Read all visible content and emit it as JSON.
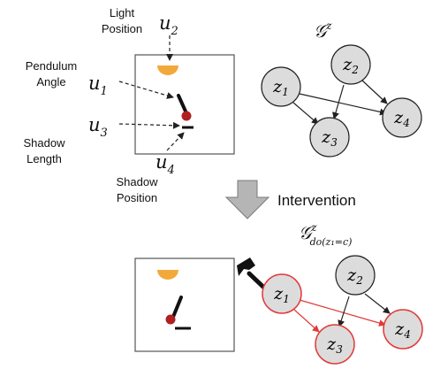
{
  "annotations": {
    "light_position": [
      "Light",
      "Position"
    ],
    "pendulum_angle": [
      "Pendulum",
      "Angle"
    ],
    "shadow_length": [
      "Shadow",
      "Length"
    ],
    "shadow_position": [
      "Shadow",
      "Position"
    ],
    "u1": "u",
    "u1_sub": "1",
    "u2": "u",
    "u2_sub": "2",
    "u3": "u",
    "u3_sub": "3",
    "u4": "u",
    "u4_sub": "4"
  },
  "graph_top": {
    "title": "𝒢",
    "title_sup": "z",
    "nodes": [
      {
        "label": "z",
        "sub": "1"
      },
      {
        "label": "z",
        "sub": "2"
      },
      {
        "label": "z",
        "sub": "3"
      },
      {
        "label": "z",
        "sub": "4"
      }
    ]
  },
  "intervention": {
    "label": "Intervention"
  },
  "graph_bottom": {
    "title": "𝒢",
    "title_sup": "z",
    "title_sub": "do(z₁=c)",
    "nodes": [
      {
        "label": "z",
        "sub": "1"
      },
      {
        "label": "z",
        "sub": "2"
      },
      {
        "label": "z",
        "sub": "3"
      },
      {
        "label": "z",
        "sub": "4"
      }
    ]
  },
  "colors": {
    "node_fill": "#dcdcdc",
    "node_stroke": "#222222",
    "intervened_stroke": "#e03a3a",
    "lamp": "#f2a93b",
    "bob": "#b02020",
    "arrow_gray": "#b5b5b5"
  }
}
